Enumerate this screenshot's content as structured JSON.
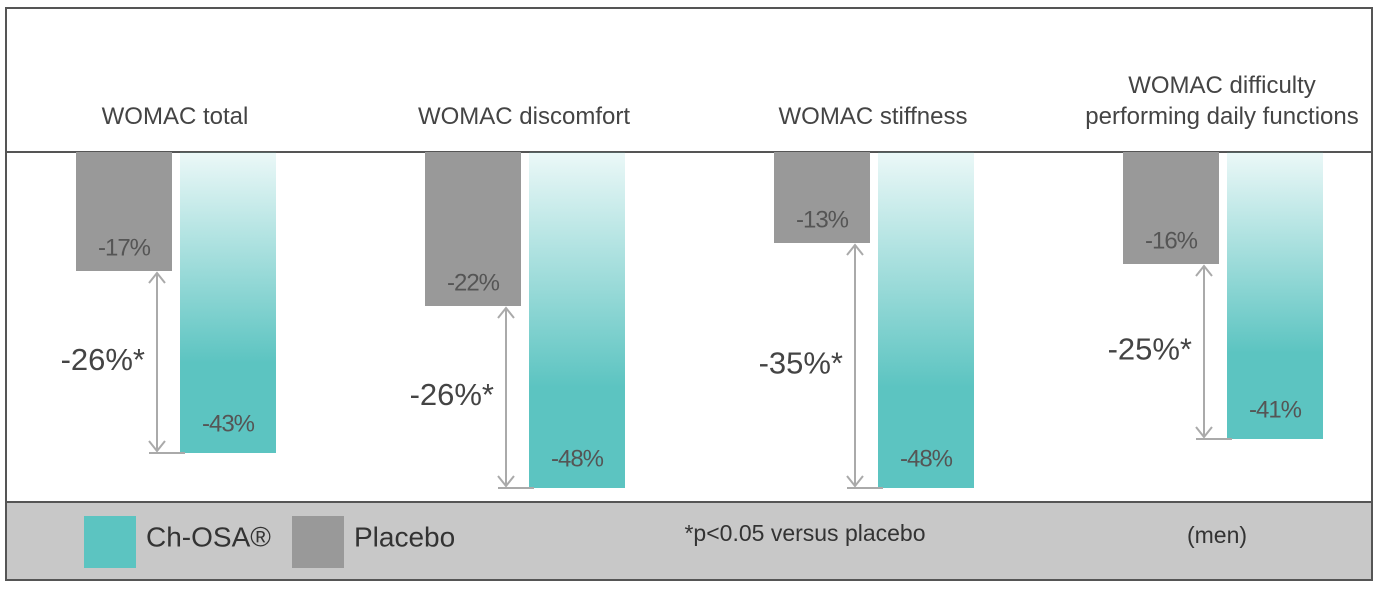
{
  "chart_data": {
    "type": "bar",
    "categories": [
      "WOMAC total",
      "WOMAC discomfort",
      "WOMAC stiffness",
      "WOMAC difficulty performing daily functions"
    ],
    "series": [
      {
        "name": "Ch-OSA®",
        "color": "#5cc4c1",
        "values": [
          -43,
          -48,
          -48,
          -41
        ],
        "value_labels": [
          "-43%",
          "-48%",
          "-48%",
          "-41%"
        ]
      },
      {
        "name": "Placebo",
        "color": "#999999",
        "values": [
          -17,
          -22,
          -13,
          -16
        ],
        "value_labels": [
          "-17%",
          "-22%",
          "-13%",
          "-16%"
        ]
      }
    ],
    "annotations": [
      "-26%*",
      "-26%*",
      "-35%*",
      "-25%*"
    ],
    "footnote": "*p<0.05 versus placebo",
    "note": "(men)"
  }
}
